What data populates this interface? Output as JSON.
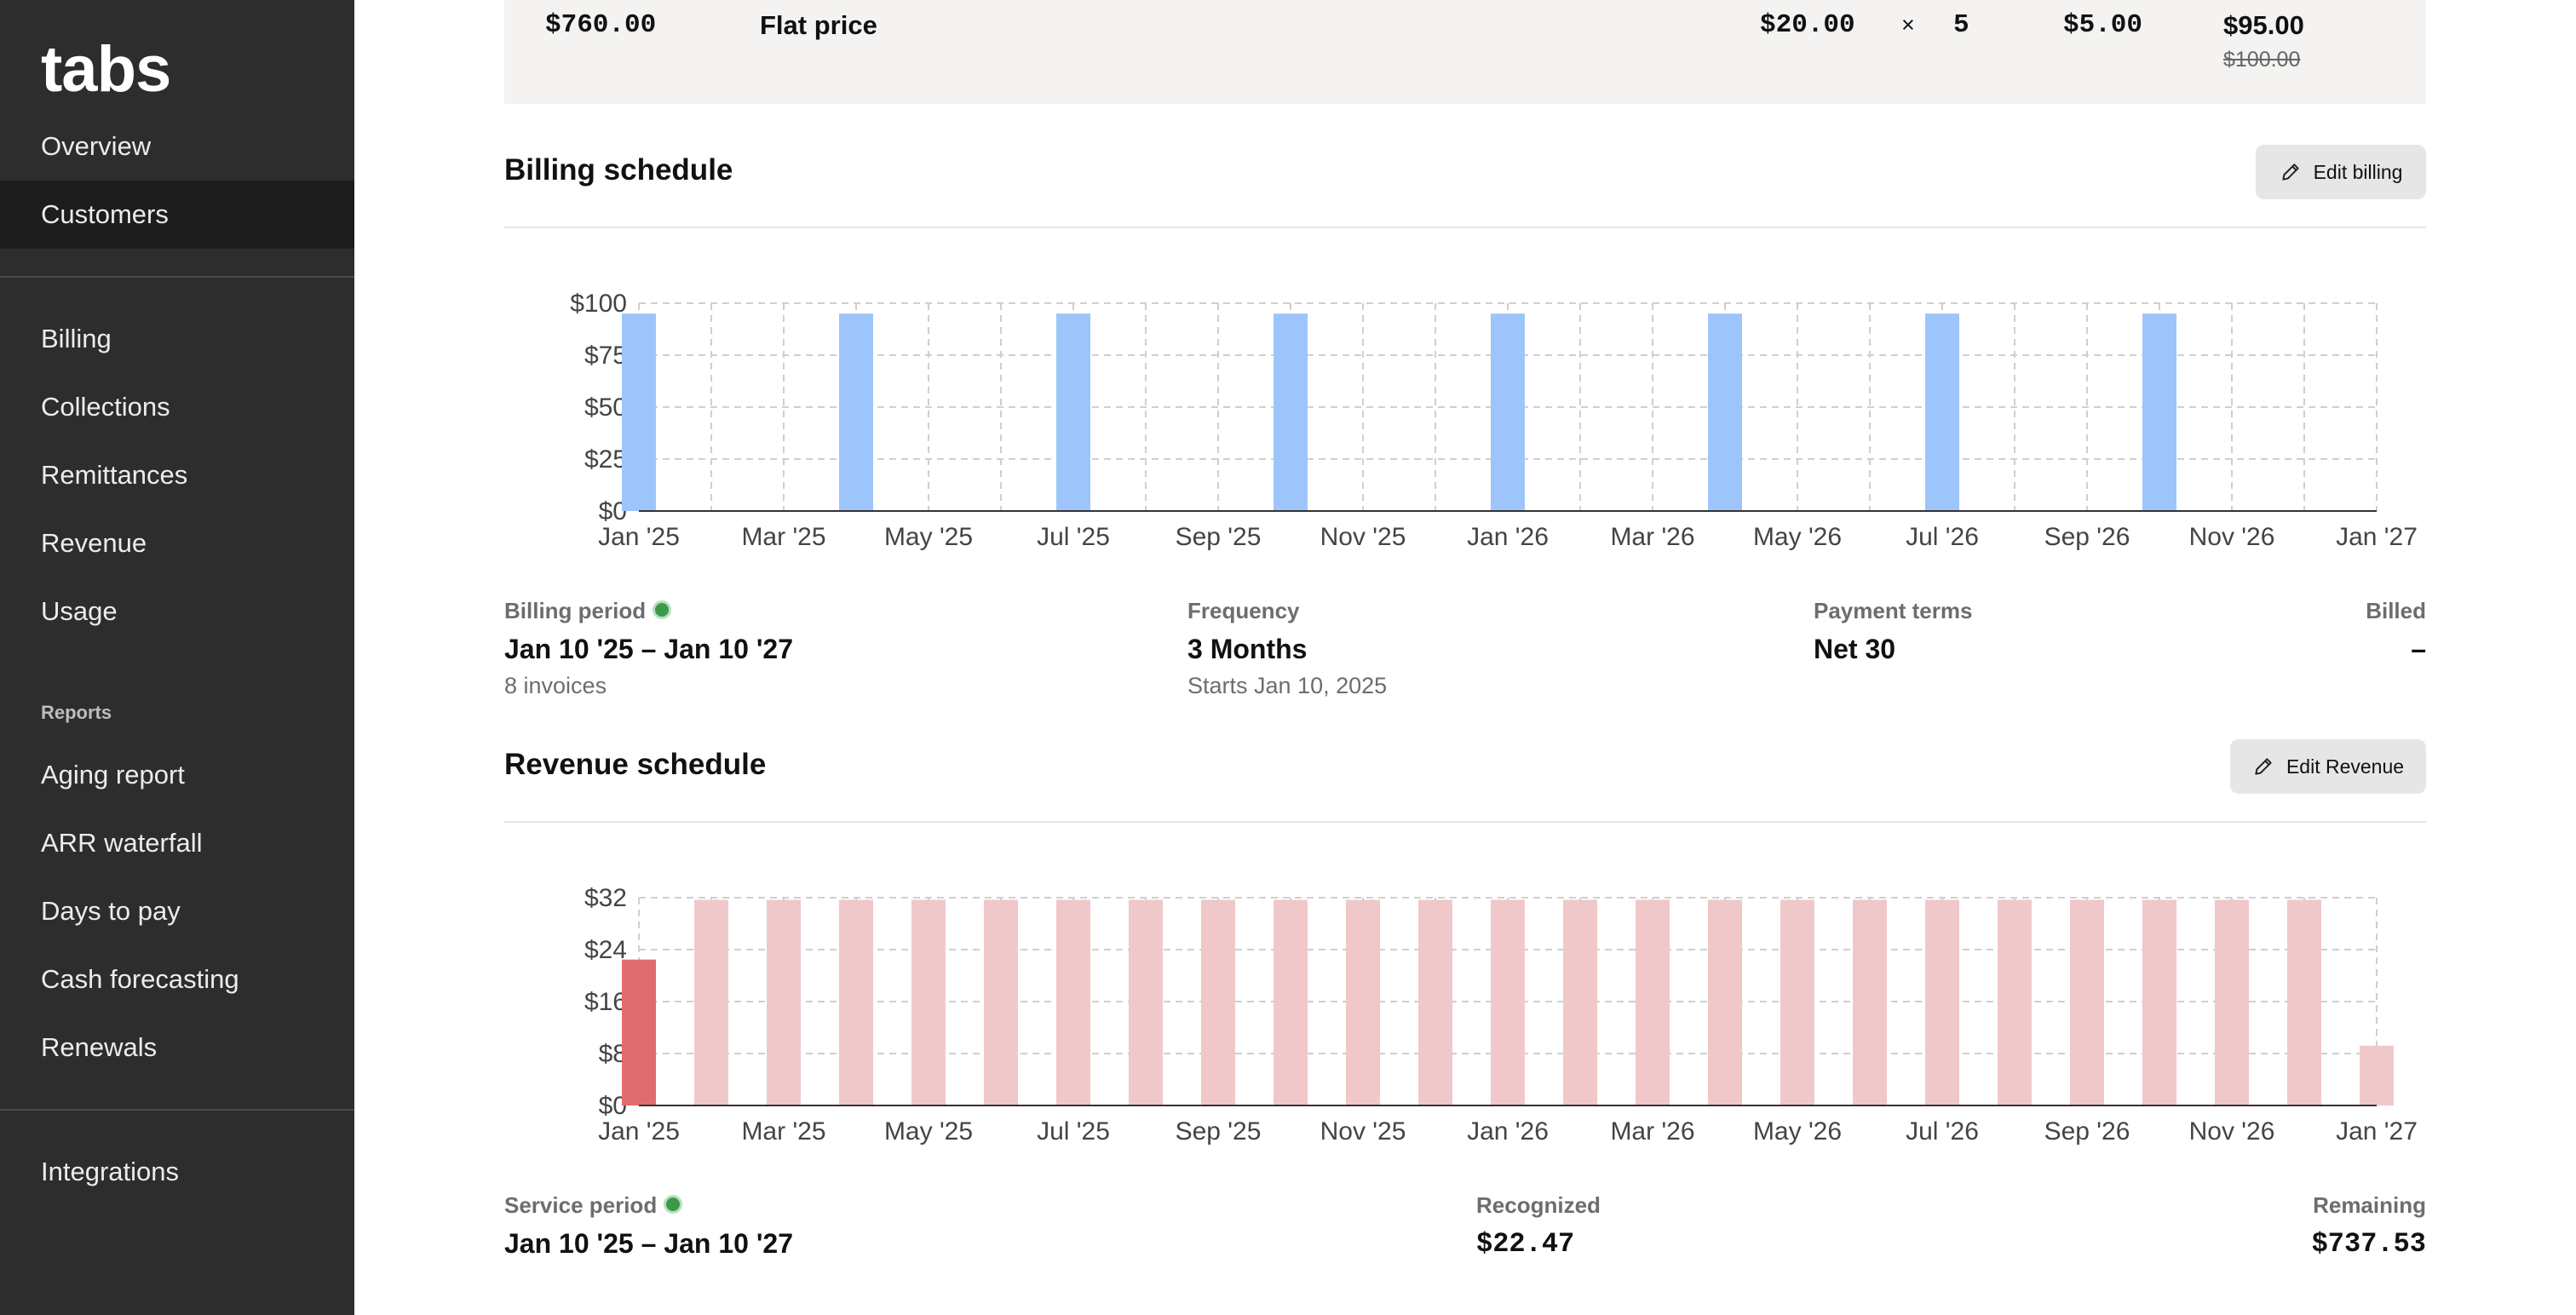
{
  "sidebar": {
    "logo": "tabs",
    "nav_top": [
      {
        "label": "Overview"
      },
      {
        "label": "Customers",
        "active": true
      }
    ],
    "nav_main": [
      {
        "label": "Billing"
      },
      {
        "label": "Collections"
      },
      {
        "label": "Remittances"
      },
      {
        "label": "Revenue"
      },
      {
        "label": "Usage"
      }
    ],
    "reports_label": "Reports",
    "reports": [
      {
        "label": "Aging report"
      },
      {
        "label": "ARR waterfall"
      },
      {
        "label": "Days to pay"
      },
      {
        "label": "Cash forecasting"
      },
      {
        "label": "Renewals"
      }
    ],
    "integrations": "Integrations"
  },
  "price_row": {
    "total": "$760.00",
    "type": "Flat price",
    "unit_price": "$20.00",
    "times": "×",
    "quantity": "5",
    "discount": "$5.00",
    "net": "$95.00",
    "original": "$100.00"
  },
  "billing": {
    "title": "Billing schedule",
    "edit_label": "Edit billing",
    "period_label": "Billing period",
    "period_value": "Jan 10 '25 – Jan 10 '27",
    "invoices": "8 invoices",
    "frequency_label": "Frequency",
    "frequency_value": "3 Months",
    "starts": "Starts Jan 10, 2025",
    "terms_label": "Payment terms",
    "terms_value": "Net 30",
    "billed_label": "Billed",
    "billed_value": "–"
  },
  "revenue": {
    "title": "Revenue schedule",
    "edit_label": "Edit Revenue",
    "service_label": "Service period",
    "service_value": "Jan 10 '25 – Jan 10 '27",
    "recognized_label": "Recognized",
    "recognized_value": "$22.47",
    "remaining_label": "Remaining",
    "remaining_value": "$737.53"
  },
  "colors": {
    "billing_bar": "#9ec5fb",
    "revenue_bar": "#f0c8c9",
    "revenue_recognized": "#e06c6f"
  },
  "chart_data": [
    {
      "type": "bar",
      "xlabel": "",
      "ylabel": "",
      "x_tick_labels": [
        "Jan '25",
        "Mar '25",
        "May '25",
        "Jul '25",
        "Sep '25",
        "Nov '25",
        "Jan '26",
        "Mar '26",
        "May '26",
        "Jul '26",
        "Sep '26",
        "Nov '26",
        "Jan '27"
      ],
      "y_tick_labels": [
        "$0",
        "$25",
        "$50",
        "$75",
        "$100"
      ],
      "ylim": [
        0,
        100
      ],
      "grid": true,
      "months": 24,
      "bars": [
        {
          "month_index": 0,
          "value": 95
        },
        {
          "month_index": 3,
          "value": 95
        },
        {
          "month_index": 6,
          "value": 95
        },
        {
          "month_index": 9,
          "value": 95
        },
        {
          "month_index": 12,
          "value": 95
        },
        {
          "month_index": 15,
          "value": 95
        },
        {
          "month_index": 18,
          "value": 95
        },
        {
          "month_index": 21,
          "value": 95
        }
      ]
    },
    {
      "type": "bar",
      "xlabel": "",
      "ylabel": "",
      "x_tick_labels": [
        "Jan '25",
        "Mar '25",
        "May '25",
        "Jul '25",
        "Sep '25",
        "Nov '25",
        "Jan '26",
        "Mar '26",
        "May '26",
        "Jul '26",
        "Sep '26",
        "Nov '26",
        "Jan '27"
      ],
      "y_tick_labels": [
        "$0",
        "$8",
        "$16",
        "$24",
        "$32"
      ],
      "ylim": [
        0,
        32
      ],
      "grid": true,
      "months": 24,
      "bars": [
        {
          "month_index": 0,
          "value": 22.47,
          "recognized": true
        },
        {
          "month_index": 1,
          "value": 31.67
        },
        {
          "month_index": 2,
          "value": 31.67
        },
        {
          "month_index": 3,
          "value": 31.67
        },
        {
          "month_index": 4,
          "value": 31.67
        },
        {
          "month_index": 5,
          "value": 31.67
        },
        {
          "month_index": 6,
          "value": 31.67
        },
        {
          "month_index": 7,
          "value": 31.67
        },
        {
          "month_index": 8,
          "value": 31.67
        },
        {
          "month_index": 9,
          "value": 31.67
        },
        {
          "month_index": 10,
          "value": 31.67
        },
        {
          "month_index": 11,
          "value": 31.67
        },
        {
          "month_index": 12,
          "value": 31.67
        },
        {
          "month_index": 13,
          "value": 31.67
        },
        {
          "month_index": 14,
          "value": 31.67
        },
        {
          "month_index": 15,
          "value": 31.67
        },
        {
          "month_index": 16,
          "value": 31.67
        },
        {
          "month_index": 17,
          "value": 31.67
        },
        {
          "month_index": 18,
          "value": 31.67
        },
        {
          "month_index": 19,
          "value": 31.67
        },
        {
          "month_index": 20,
          "value": 31.67
        },
        {
          "month_index": 21,
          "value": 31.67
        },
        {
          "month_index": 22,
          "value": 31.67
        },
        {
          "month_index": 23,
          "value": 31.67
        },
        {
          "month_index": 24,
          "value": 9.2
        }
      ]
    }
  ]
}
